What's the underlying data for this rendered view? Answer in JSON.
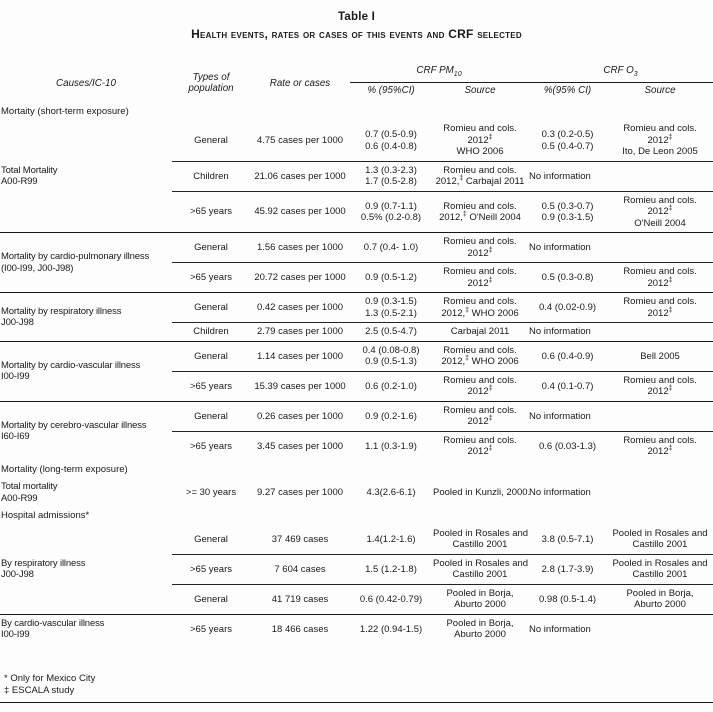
{
  "page": {
    "title": "Table I",
    "subtitle": "Health events, rates or cases of this events and CRF selected"
  },
  "colors": {
    "background": "#fdfdfd",
    "text": "#1a1a1a",
    "rule": "#161616"
  },
  "table": {
    "header": {
      "causes": "Causes/IC-10",
      "population": "Types of\npopulation",
      "rate": "Rate or cases",
      "pm10_label": "CRF PM",
      "pm10_sub": "10",
      "o3_label": "CRF O",
      "o3_sub": "3",
      "pm10_ci": "% (95%CI)",
      "pm10_source": "Source",
      "o3_ci": "%(95% CI)",
      "o3_source": "Source"
    },
    "sections": [
      {
        "type": "label",
        "indent": 0,
        "text": "Mortaity (short-term exposure)"
      },
      {
        "type": "group",
        "indent": 2,
        "divider": "full",
        "label": [
          "Total Mortality",
          "A00-R99"
        ],
        "rows": [
          {
            "pop": "General",
            "rate": "4.75 cases per 1000",
            "pm_ci": [
              "0.7 (0.5-0.9)",
              "0.6 (0.4-0.8)"
            ],
            "pm_src": [
              "Romieu and cols.",
              "2012‡",
              "WHO 2006"
            ],
            "o3_ci": [
              "0.3 (0.2-0.5)",
              "0.5 (0.4-0.7)"
            ],
            "o3_src": [
              "Romieu and cols.",
              "2012‡",
              "Ito, De Leon 2005"
            ]
          },
          {
            "pop": "Children",
            "rate": "21.06 cases per 1000",
            "pm_ci": [
              "1.3 (0.3-2.3)",
              "1.7 (0.5-2.8)"
            ],
            "pm_src": [
              "Romieu and cols.",
              "2012,‡ Carbajal 2011"
            ],
            "o3_ci": [
              "No information"
            ],
            "o3_src": null
          },
          {
            "pop": ">65 years",
            "rate": "45.92 cases per 1000",
            "pm_ci": [
              "0.9 (0.7-1.1)",
              "0.5% (0.2-0.8)"
            ],
            "pm_src": [
              "Romieu and cols.",
              "2012,‡ O'Neill 2004"
            ],
            "o3_ci": [
              "0.5 (0.3-0.7)",
              "0.9 (0.3-1.5)"
            ],
            "o3_src": [
              "Romieu and cols.",
              "2012‡",
              "O'Neill 2004"
            ]
          }
        ]
      },
      {
        "type": "group",
        "indent": 1,
        "divider": "full",
        "label": [
          "Mortality by cardio-pulmonary illness",
          "(I00-I99, J00-J98)"
        ],
        "rows": [
          {
            "pop": "General",
            "rate": "1.56 cases per 1000",
            "pm_ci": [
              "0.7 (0.4- 1.0)"
            ],
            "pm_src": [
              "Romieu and cols.",
              "2012‡"
            ],
            "o3_ci": [
              "No information"
            ],
            "o3_src": null
          },
          {
            "pop": ">65 years",
            "rate": "20.72 cases per 1000",
            "pm_ci": [
              "0.9 (0.5-1.2)"
            ],
            "pm_src": [
              "Romieu and cols.",
              "2012‡"
            ],
            "o3_ci": [
              "0.5 (0.3-0.8)"
            ],
            "o3_src": [
              "Romieu and cols.",
              "2012‡"
            ]
          }
        ]
      },
      {
        "type": "group",
        "indent": 1,
        "divider": "full",
        "label": [
          "Mortality by respiratory illness",
          "J00-J98"
        ],
        "rows": [
          {
            "pop": "General",
            "rate": "0.42 cases per 1000",
            "pm_ci": [
              "0.9 (0.3-1.5)",
              "1.3 (0.5-2.1)"
            ],
            "pm_src": [
              "Romieu and cols.",
              "2012,‡ WHO 2006"
            ],
            "o3_ci": [
              "0.4 (0.02-0.9)"
            ],
            "o3_src": [
              "Romieu and cols.",
              "2012‡"
            ]
          },
          {
            "pop": "Children",
            "rate": "2.79 cases per 1000",
            "pm_ci": [
              "2.5 (0.5-4.7)"
            ],
            "pm_src": [
              "Carbajal 2011"
            ],
            "o3_ci": [
              "No information"
            ],
            "o3_src": null
          }
        ]
      },
      {
        "type": "group",
        "indent": 1,
        "divider": "full",
        "label": [
          "Mortality by cardio-vascular illness",
          "I00-I99"
        ],
        "rows": [
          {
            "pop": "General",
            "rate": "1.14 cases per 1000",
            "pm_ci": [
              "0.4 (0.08-0.8)",
              "0.9 (0.5-1.3)"
            ],
            "pm_src": [
              "Romieu and cols.",
              "2012,‡ WHO 2006"
            ],
            "o3_ci": [
              "0.6 (0.4-0.9)"
            ],
            "o3_src": [
              "Bell 2005"
            ]
          },
          {
            "pop": ">65 years",
            "rate": "15.39 cases per 1000",
            "pm_ci": [
              "0.6 (0.2-1.0)"
            ],
            "pm_src": [
              "Romieu and cols.",
              "2012‡"
            ],
            "o3_ci": [
              "0.4 (0.1-0.7)"
            ],
            "o3_src": [
              "Romieu and cols.",
              "2012‡"
            ]
          }
        ]
      },
      {
        "type": "group",
        "indent": 1,
        "divider": "none",
        "label": [
          "Mortality by cerebro-vascular illness",
          "I60-I69"
        ],
        "rows": [
          {
            "pop": "General",
            "rate": "0.26 cases per 1000",
            "pm_ci": [
              "0.9 (0.2-1.6)"
            ],
            "pm_src": [
              "Romieu and cols.",
              "2012‡"
            ],
            "o3_ci": [
              "No information"
            ],
            "o3_src": null
          },
          {
            "pop": ">65 years",
            "rate": "3.45 cases per 1000",
            "pm_ci": [
              "1.1 (0.3-1.9)"
            ],
            "pm_src": [
              "Romieu and cols.",
              "2012‡"
            ],
            "o3_ci": [
              "0.6 (0.03-1.3)"
            ],
            "o3_src": [
              "Romieu and cols.",
              "2012‡"
            ]
          }
        ]
      },
      {
        "type": "label",
        "indent": 0,
        "text": "Mortality (long-term exposure)"
      },
      {
        "type": "group",
        "indent": 2,
        "divider": "none",
        "align_data": "bottom",
        "label": [
          "Total mortality",
          "A00-R99"
        ],
        "rows": [
          {
            "pop": ">= 30 years",
            "rate": "9.27 cases per 1000",
            "pm_ci": [
              "4.3(2.6-6.1)"
            ],
            "pm_src": [
              "Pooled in Kunzli, 2000."
            ],
            "o3_ci": [
              "No information"
            ],
            "o3_src": null
          }
        ]
      },
      {
        "type": "label",
        "indent": 0,
        "text": "Hospital admissions*"
      },
      {
        "type": "group",
        "indent": 2,
        "divider": "full",
        "label": [
          "By respiratory illness",
          "J00-J98"
        ],
        "rows": [
          {
            "pop": "General",
            "rate": "37 469 cases",
            "pm_ci": [
              "1.4(1.2-1.6)"
            ],
            "pm_src": [
              "Pooled in Rosales and",
              "Castillo 2001"
            ],
            "o3_ci": [
              "3.8 (0.5-7.1)"
            ],
            "o3_src": [
              "Pooled in Rosales and",
              "Castillo 2001"
            ]
          },
          {
            "pop": ">65 years",
            "rate": "7 604 cases",
            "pm_ci": [
              "1.5 (1.2-1.8)"
            ],
            "pm_src": [
              "Pooled in Rosales and",
              "Castillo 2001"
            ],
            "o3_ci": [
              "2.8 (1.7-3.9)"
            ],
            "o3_src": [
              "Pooled in Rosales and",
              "Castillo 2001"
            ]
          },
          {
            "pop": "General",
            "rate": "41 719 cases",
            "pm_ci": [
              "0.6 (0.42-0.79)"
            ],
            "pm_src": [
              "Pooled in Borja,",
              "Aburto 2000"
            ],
            "o3_ci": [
              "0.98 (0.5-1.4)"
            ],
            "o3_src": [
              "Pooled in Borja,",
              "Aburto 2000"
            ]
          }
        ]
      },
      {
        "type": "group",
        "indent": 2,
        "divider": "none",
        "label": [
          "By cardio-vascular illness",
          "I00-I99"
        ],
        "rows": [
          {
            "pop": ">65 years",
            "rate": "18 466 cases",
            "pm_ci": [
              "1.22 (0.94-1.5)"
            ],
            "pm_src": [
              "Pooled in Borja,",
              "Aburto 2000"
            ],
            "o3_ci": [
              "No information"
            ],
            "o3_src": null
          }
        ]
      }
    ]
  },
  "footnotes": [
    "* Only for Mexico City",
    "‡ ESCALA study"
  ]
}
